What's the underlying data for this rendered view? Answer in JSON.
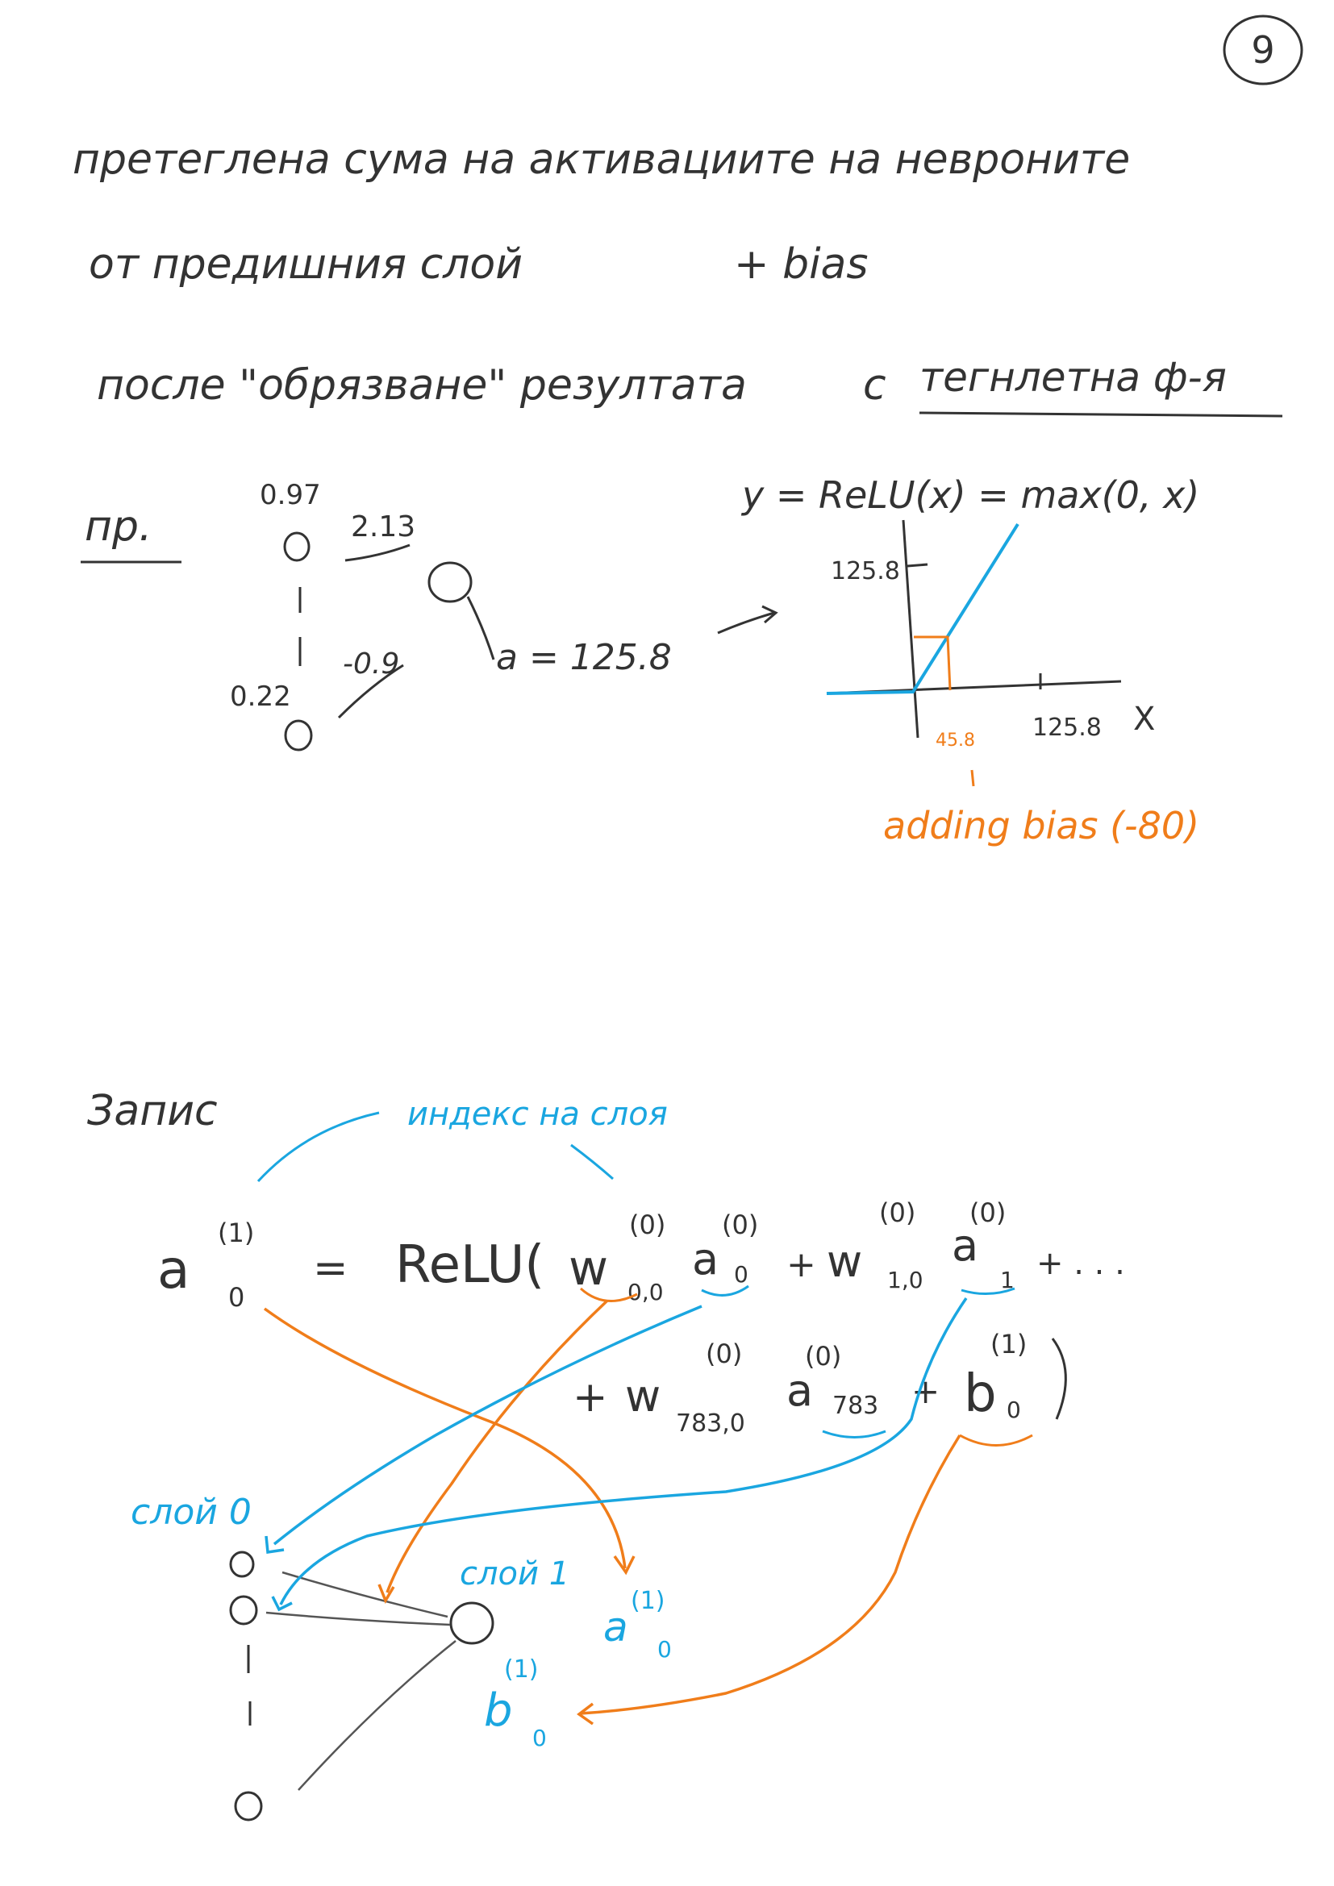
{
  "page": {
    "number": "9"
  },
  "text": {
    "line1": "претеглена сума на активациите на невроните",
    "line2a": "от предишния слой",
    "line2b": "+ bias",
    "line3a": "после \"обрязване\" резултата",
    "line3b": "с",
    "line3c": "тегнлетна ф-я"
  },
  "example": {
    "label": "пр.",
    "activation_top": "0.97",
    "weight_top": "2.13",
    "activation_bottom": "0.22",
    "weight_bottom": "-0.9",
    "result": "a = 125.8",
    "relu_formula": "y = ReLU(x) = max(0, x)",
    "y_tick": "125.8",
    "x_tick": "125.8",
    "x_axis_label": "X",
    "shifted_value": "45.8",
    "bias_note": "adding bias (-80)"
  },
  "notation": {
    "heading": "Запис",
    "layer_index_note": "индекс на слоя",
    "lhs": "a",
    "lhs_super": "(1)",
    "lhs_sub": "0",
    "eq": "=",
    "relu_open": "ReLU(",
    "w": "w",
    "a": "a",
    "b": "b",
    "sup0": "(0)",
    "sup1": "(1)",
    "sub_w00": "0,0",
    "sub_w10": "1,0",
    "sub_w7830": "783,0",
    "sub_a0": "0",
    "sub_a1": "1",
    "sub_a783": "783",
    "sub_b0": "0",
    "plus": "+",
    "ellipsis": "+ . . .",
    "close": ")"
  },
  "network": {
    "layer0_label": "слой 0",
    "layer1_label": "слой 1",
    "a_label": "a",
    "a_super": "(1)",
    "a_sub": "0",
    "b_label": "b",
    "b_super": "(1)",
    "b_sub": "0",
    "node_glyph": "0"
  },
  "colors": {
    "ink": "#333333",
    "blue": "#1aa6e0",
    "orange": "#f07d1a"
  }
}
